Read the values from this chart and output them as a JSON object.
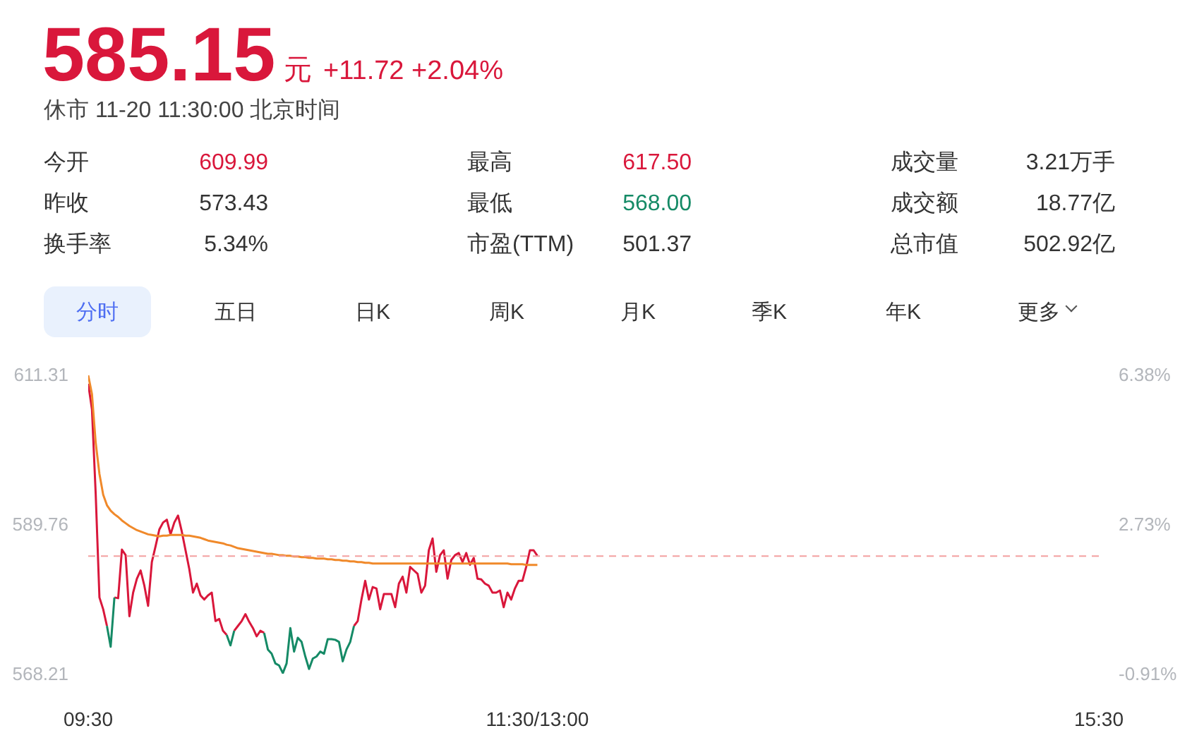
{
  "chart_data": {
    "type": "line",
    "title": "585.15",
    "subtitle": "休市 11-20 11:30:00 北京时间",
    "annotations": [
      "元",
      "+11.72 +2.04%",
      "今开",
      "609.99",
      "最高",
      "617.50",
      "成交量",
      "3.21万手",
      "昨收",
      "573.43",
      "最低",
      "568.00",
      "成交额",
      "18.77亿",
      "换手率",
      "5.34%",
      "市盈(TTM)",
      "501.37",
      "总市值",
      "502.92亿",
      "分时",
      "五日",
      "日K",
      "周K",
      "月K",
      "季K",
      "年K",
      "更多"
    ],
    "categories": [
      "09:30",
      null,
      null,
      null,
      null,
      null,
      null,
      null,
      null,
      null,
      null,
      null,
      null,
      null,
      null,
      null,
      null,
      null,
      null,
      null,
      null,
      null,
      null,
      null,
      null,
      null,
      null,
      null,
      null,
      null,
      null,
      null,
      null,
      null,
      null,
      null,
      null,
      null,
      null,
      null,
      null,
      null,
      null,
      null,
      null,
      null,
      null,
      null,
      null,
      null,
      null,
      null,
      null,
      null,
      null,
      null,
      null,
      null,
      null,
      null,
      null,
      null,
      null,
      null,
      null,
      null,
      null,
      null,
      null,
      null,
      null,
      null,
      null,
      null,
      null,
      null,
      null,
      null,
      null,
      null,
      null,
      null,
      null,
      null,
      null,
      null,
      null,
      null,
      null,
      null,
      null,
      null,
      null,
      null,
      null,
      null,
      null,
      null,
      null,
      null,
      null,
      null,
      null,
      null,
      null,
      null,
      null,
      null,
      null,
      null,
      null,
      null,
      null,
      null,
      null,
      null,
      null,
      null,
      null,
      null,
      "11:30/13:00",
      null,
      null,
      null,
      null,
      null,
      null,
      null,
      null,
      null,
      null,
      null,
      null,
      null,
      null,
      null,
      null,
      null,
      null,
      null,
      null,
      null,
      null,
      null,
      null,
      null,
      null,
      null,
      null,
      null,
      null,
      null,
      null,
      null,
      null,
      null,
      null,
      null,
      null,
      null,
      null,
      null,
      null,
      null,
      null,
      null,
      null,
      null,
      null,
      null,
      null,
      null,
      null,
      null,
      null,
      null,
      null,
      null,
      null,
      null,
      null,
      null,
      null,
      null,
      null,
      null,
      null,
      null,
      null,
      null,
      null,
      null,
      null,
      null,
      null,
      null,
      null,
      null,
      null,
      null,
      null,
      null,
      null,
      null,
      null,
      null,
      null,
      null,
      null,
      null,
      null,
      null,
      null,
      null,
      null,
      null,
      null,
      null,
      null,
      null,
      null,
      null,
      null,
      null,
      null,
      null,
      null,
      null,
      null,
      null,
      null,
      null,
      null,
      null,
      null,
      null,
      null,
      null,
      null,
      null,
      null,
      null,
      null,
      null,
      null,
      null,
      null,
      null,
      null,
      null,
      null,
      null,
      null,
      null,
      null,
      null,
      null,
      null,
      null,
      null,
      null,
      null,
      null,
      null,
      null,
      null,
      null,
      null,
      null,
      null,
      "15:30"
    ],
    "series": [
      {
        "color": "#d9173b",
        "values": [
          610.0,
          606.3,
          594.1,
          579.2,
          577.5,
          575.1,
          null,
          579.2,
          579.1,
          586.1,
          585.3,
          576.5,
          579.9,
          581.9,
          583.1,
          580.9,
          578.0,
          584.3,
          586.6,
          589.0,
          590.0,
          590.4,
          588.3,
          590.0,
          591.0,
          588.7,
          586.0,
          583.3,
          579.9,
          581.2,
          579.5,
          578.9,
          579.5,
          579.9,
          575.8,
          576.1,
          574.4,
          573.8,
          null,
          574.4,
          575.1,
          575.8,
          576.8,
          575.7,
          574.8,
          573.6,
          574.4,
          574.1,
          null,
          null,
          null,
          null,
          null,
          null,
          null,
          null,
          null,
          null,
          null,
          null,
          null,
          null,
          null,
          null,
          null,
          null,
          null,
          null,
          null,
          null,
          null,
          575.1,
          575.8,
          578.9,
          581.6,
          578.9,
          580.7,
          580.5,
          577.5,
          579.7,
          579.7,
          579.7,
          577.8,
          581.2,
          582.2,
          579.9,
          583.6,
          583.1,
          582.6,
          579.9,
          580.9,
          586.0,
          587.7,
          582.9,
          585.3,
          586.0,
          581.9,
          584.6,
          585.3,
          585.6,
          584.3,
          585.6,
          583.9,
          584.9,
          581.9,
          581.8,
          581.2,
          580.9,
          579.9,
          579.9,
          580.2,
          577.8,
          579.9,
          578.9,
          580.5,
          581.6,
          581.6,
          583.6,
          586.0,
          586.0,
          585.2,
          null,
          null,
          null,
          null,
          null,
          null,
          null,
          null,
          null,
          null,
          null,
          null,
          null,
          null,
          null,
          null,
          null,
          null,
          null,
          null,
          null,
          null,
          null,
          null,
          null,
          null,
          null,
          null,
          null,
          null,
          null,
          null,
          null,
          null,
          null,
          null,
          null,
          null,
          null,
          null,
          null,
          null,
          null,
          null,
          null,
          null,
          null,
          null,
          null,
          null,
          null,
          null,
          null,
          null,
          null,
          null,
          null,
          null,
          null,
          null,
          null,
          null,
          null,
          null,
          null,
          null,
          null,
          null,
          null,
          null,
          null,
          null,
          null,
          null,
          null,
          null,
          null,
          null,
          null,
          null,
          null,
          null,
          null,
          null,
          null,
          null,
          null,
          null,
          null,
          null,
          null,
          null,
          null,
          null,
          null,
          null,
          null,
          null,
          null,
          null,
          null,
          null,
          null,
          null,
          null,
          null,
          null,
          null,
          null,
          null,
          null,
          null,
          null,
          null,
          null,
          null,
          null,
          null,
          null,
          null,
          null,
          null,
          null,
          null,
          null,
          null,
          null,
          null,
          null,
          null,
          null,
          null,
          null,
          null,
          null,
          null,
          null,
          null,
          null,
          null,
          null,
          null,
          null,
          null,
          null,
          null,
          null,
          null,
          null,
          null
        ]
      },
      {
        "color": "#158a66",
        "values": [
          null,
          null,
          null,
          null,
          null,
          575.1,
          572.1,
          579.2,
          null,
          null,
          null,
          null,
          null,
          null,
          null,
          null,
          null,
          null,
          null,
          null,
          null,
          null,
          null,
          null,
          null,
          null,
          null,
          null,
          null,
          null,
          null,
          null,
          null,
          null,
          null,
          null,
          null,
          573.8,
          572.3,
          574.4,
          null,
          null,
          null,
          null,
          null,
          null,
          null,
          574.1,
          571.7,
          571.1,
          569.7,
          569.4,
          568.3,
          569.7,
          574.8,
          571.4,
          573.4,
          572.8,
          570.7,
          568.9,
          570.4,
          570.7,
          571.4,
          571.1,
          573.2,
          573.2,
          573.1,
          572.8,
          570.0,
          571.7,
          572.8,
          575.1,
          null,
          null,
          null,
          null,
          null,
          null,
          null,
          null,
          null,
          null,
          null,
          null,
          null,
          null,
          null,
          null,
          null,
          null,
          null,
          null,
          null,
          null,
          null,
          null,
          null,
          null,
          null,
          null,
          null,
          null,
          null,
          null,
          null,
          null,
          null,
          null,
          null,
          null,
          null,
          null,
          null,
          null,
          null,
          null,
          null,
          null,
          null,
          null,
          null,
          null,
          null,
          null,
          null,
          null,
          null,
          null,
          null,
          null,
          null,
          null,
          null,
          null,
          null,
          null,
          null,
          null,
          null,
          null,
          null,
          null,
          null,
          null,
          null,
          null,
          null,
          null,
          null,
          null,
          null,
          null,
          null,
          null,
          null,
          null,
          null,
          null,
          null,
          null,
          null,
          null,
          null,
          null,
          null,
          null,
          null,
          null,
          null,
          null,
          null,
          null,
          null,
          null,
          null,
          null,
          null,
          null,
          null,
          null,
          null,
          null,
          null,
          null,
          null,
          null,
          null,
          null,
          null,
          null,
          null,
          null,
          null,
          null,
          null,
          null,
          null,
          null,
          null,
          null,
          null,
          null,
          null,
          null,
          null,
          null,
          null,
          null,
          null,
          null,
          null,
          null,
          null,
          null,
          null,
          null,
          null,
          null,
          null,
          null,
          null,
          null,
          null,
          null,
          null,
          null,
          null,
          null,
          null,
          null,
          null,
          null,
          null,
          null,
          null,
          null,
          null,
          null,
          null,
          null,
          null,
          null,
          null,
          null,
          null,
          null,
          null,
          null,
          null,
          null,
          null,
          null,
          null,
          null,
          null,
          null,
          null,
          null,
          null,
          null,
          null,
          null,
          null,
          null,
          null,
          null,
          null,
          null,
          null,
          null,
          null
        ]
      },
      {
        "color": "#f0892a",
        "values": [
          611.2,
          608.5,
          601.5,
          597.0,
          594.0,
          592.5,
          591.7,
          591.2,
          590.8,
          590.3,
          589.9,
          589.5,
          589.2,
          588.9,
          588.7,
          588.5,
          588.3,
          588.2,
          588.1,
          588.0,
          588.1,
          588.1,
          588.2,
          588.2,
          588.2,
          588.2,
          588.1,
          588.1,
          588.0,
          587.9,
          587.8,
          587.6,
          587.4,
          587.3,
          587.2,
          587.1,
          587.0,
          586.8,
          586.7,
          586.5,
          586.3,
          586.2,
          586.1,
          586.0,
          585.9,
          585.8,
          585.7,
          585.6,
          585.5,
          585.5,
          585.4,
          585.3,
          585.3,
          585.2,
          585.2,
          585.1,
          585.1,
          585.0,
          585.0,
          584.9,
          584.9,
          584.8,
          584.8,
          584.8,
          584.7,
          584.7,
          584.6,
          584.6,
          584.5,
          584.5,
          584.4,
          584.4,
          584.3,
          584.3,
          584.2,
          584.2,
          584.1,
          584.1,
          584.1,
          584.1,
          584.1,
          584.1,
          584.1,
          584.1,
          584.1,
          584.1,
          584.1,
          584.1,
          584.1,
          584.1,
          584.1,
          584.1,
          584.1,
          584.1,
          584.1,
          584.1,
          584.1,
          584.1,
          584.1,
          584.1,
          584.1,
          584.1,
          584.1,
          584.1,
          584.1,
          584.1,
          584.1,
          584.1,
          584.1,
          584.1,
          584.1,
          584.1,
          584.1,
          584.0,
          584.0,
          584.0,
          584.0,
          583.9,
          583.9,
          583.9,
          583.9,
          null,
          null,
          null,
          null,
          null,
          null,
          null,
          null,
          null,
          null,
          null,
          null,
          null,
          null,
          null,
          null,
          null,
          null,
          null,
          null,
          null,
          null,
          null,
          null,
          null,
          null,
          null,
          null,
          null,
          null,
          null,
          null,
          null,
          null,
          null,
          null,
          null,
          null,
          null,
          null,
          null,
          null,
          null,
          null,
          null,
          null,
          null,
          null,
          null,
          null,
          null,
          null,
          null,
          null,
          null,
          null,
          null,
          null,
          null,
          null,
          null,
          null,
          null,
          null,
          null,
          null,
          null,
          null,
          null,
          null,
          null,
          null,
          null,
          null,
          null,
          null,
          null,
          null,
          null,
          null,
          null,
          null,
          null,
          null,
          null,
          null,
          null,
          null,
          null,
          null,
          null,
          null,
          null,
          null,
          null,
          null,
          null,
          null,
          null,
          null,
          null,
          null,
          null,
          null,
          null,
          null,
          null,
          null,
          null,
          null,
          null,
          null,
          null,
          null,
          null,
          null,
          null,
          null,
          null,
          null,
          null,
          null,
          null,
          null,
          null,
          null,
          null,
          null,
          null,
          null,
          null,
          null,
          null,
          null,
          null,
          null,
          null,
          null,
          null,
          null,
          null,
          null,
          null,
          null,
          null,
          null,
          null,
          null,
          null,
          null
        ]
      }
    ],
    "ylim": [
      568.21,
      611.31
    ],
    "yticks": [
      568.21,
      589.76,
      611.31
    ],
    "y2lim": [
      -0.91,
      6.38
    ],
    "y2ticks": [
      {
        "value": -0.91,
        "label": "-0.91%"
      },
      {
        "value": 2.73,
        "label": "2.73%"
      },
      {
        "value": 6.38,
        "label": "6.38%"
      }
    ],
    "ref_lines": [
      {
        "axis": "y",
        "value": 585.15,
        "color": "#f3a0a0",
        "line_style": "dashed"
      }
    ]
  }
}
